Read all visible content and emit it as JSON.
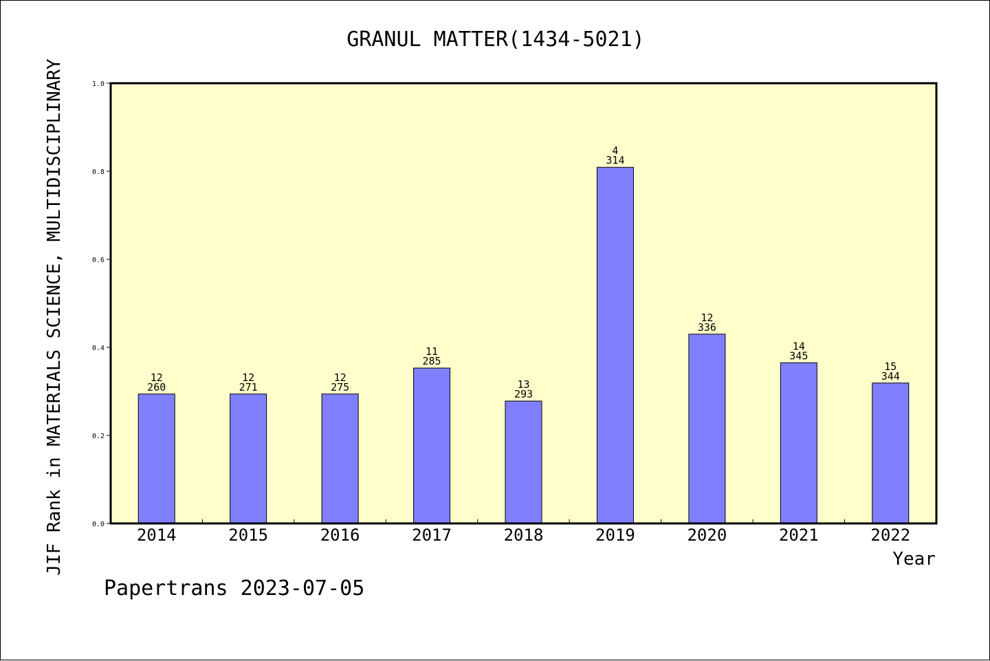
{
  "chart_data": {
    "type": "bar",
    "title": "GRANUL MATTER(1434-5021)",
    "xlabel": "Year",
    "ylabel": "JIF Rank in MATERIALS SCIENCE, MULTIDISCIPLINARY",
    "ylim": [
      0,
      1.0
    ],
    "yticks": [
      "0.0",
      "0.2",
      "0.4",
      "0.6",
      "0.8",
      "1.0"
    ],
    "grid": false,
    "categories": [
      "2014",
      "2015",
      "2016",
      "2017",
      "2018",
      "2019",
      "2020",
      "2021",
      "2022"
    ],
    "values": [
      0.294,
      0.294,
      0.294,
      0.353,
      0.278,
      0.809,
      0.43,
      0.365,
      0.319
    ],
    "rank_labels": [
      "12",
      "12",
      "12",
      "11",
      "13",
      "4",
      "12",
      "14",
      "15"
    ],
    "total_labels": [
      "260",
      "271",
      "275",
      "285",
      "293",
      "314",
      "336",
      "345",
      "344"
    ],
    "colors": {
      "bar": "#8080ff",
      "plot_background": "#ffffcc",
      "axis": "#000000"
    }
  },
  "footer": {
    "text": "Papertrans 2023-07-05"
  }
}
